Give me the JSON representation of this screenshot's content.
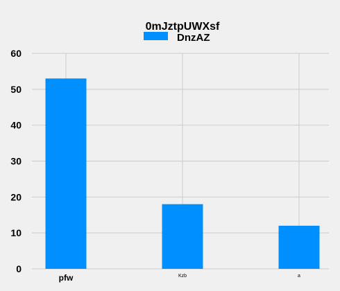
{
  "chart_data": {
    "type": "bar",
    "title": "0mJztpUWXsf",
    "categories": [
      "pfw",
      "Kzb",
      "a"
    ],
    "series": [
      {
        "name": "DnzAZ",
        "values": [
          53,
          18,
          12
        ]
      }
    ],
    "xlabel": "",
    "ylabel": "",
    "ylim": [
      0,
      60
    ],
    "yticks": [
      0,
      10,
      20,
      30,
      40,
      50,
      60
    ],
    "grid": true,
    "legend": "top-center",
    "colors": {
      "series": "#008fff",
      "background": "#f0f0f0",
      "grid": "#cbcbcb"
    }
  }
}
